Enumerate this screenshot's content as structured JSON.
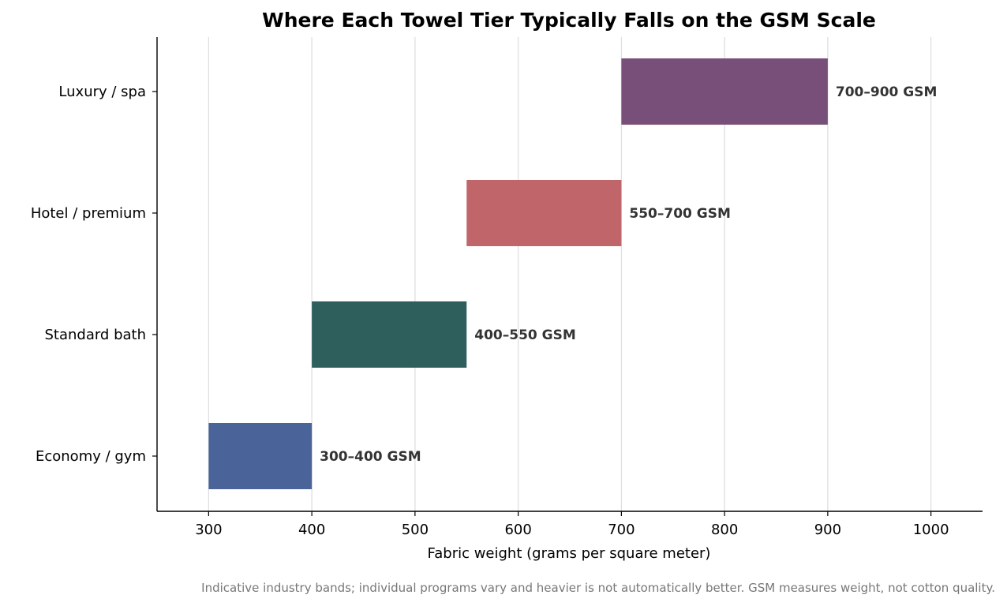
{
  "chart_data": {
    "type": "bar",
    "orientation": "horizontal-range",
    "title": "Where Each Towel Tier Typically Falls on the GSM Scale",
    "xlabel": "Fabric weight (grams per square meter)",
    "ylabel": "",
    "xlim": [
      250,
      1050
    ],
    "xticks": [
      300,
      400,
      500,
      600,
      700,
      800,
      900,
      1000
    ],
    "grid": "vertical",
    "categories": [
      "Economy / gym",
      "Standard bath",
      "Hotel / premium",
      "Luxury / spa"
    ],
    "ranges": [
      {
        "category": "Economy / gym",
        "start": 300,
        "end": 400,
        "label": "300–400 GSM",
        "color": "#4A6399"
      },
      {
        "category": "Standard bath",
        "start": 400,
        "end": 550,
        "label": "400–550 GSM",
        "color": "#2E5F5C"
      },
      {
        "category": "Hotel / premium",
        "start": 550,
        "end": 700,
        "label": "550–700 GSM",
        "color": "#C0666A"
      },
      {
        "category": "Luxury / spa",
        "start": 700,
        "end": 900,
        "label": "700–900 GSM",
        "color": "#784F79"
      }
    ],
    "footnote": "Indicative industry bands; individual programs vary and heavier is not automatically better. GSM measures weight, not cotton quality."
  }
}
